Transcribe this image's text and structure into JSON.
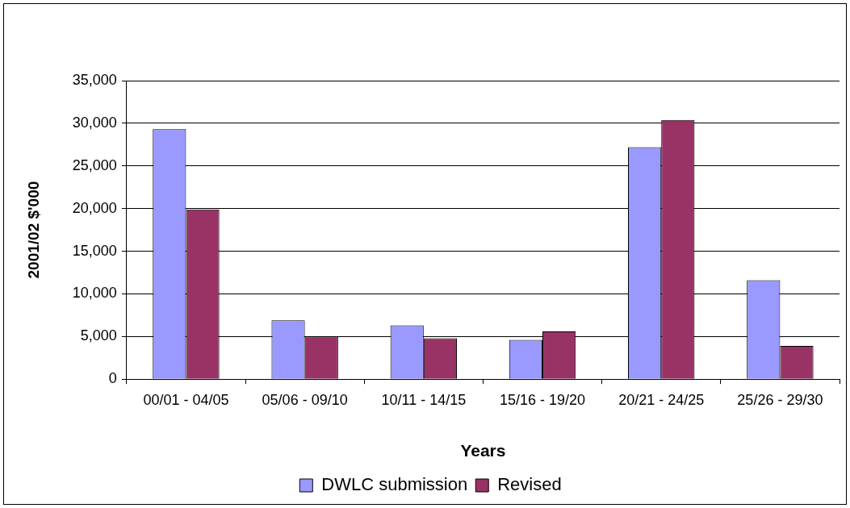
{
  "chart_data": {
    "type": "bar",
    "xlabel": "Years",
    "ylabel": "2001/02 $'000",
    "categories": [
      "00/01 - 04/05",
      "05/06 - 09/10",
      "10/11 - 14/15",
      "15/16 - 19/20",
      "20/21 - 24/25",
      "25/26 - 29/30"
    ],
    "series": [
      {
        "name": "DWLC submission",
        "color": "#9999ff",
        "values": [
          29300,
          6900,
          6300,
          4600,
          27200,
          11600
        ]
      },
      {
        "name": "Revised",
        "color": "#993366",
        "values": [
          19900,
          5000,
          4800,
          5600,
          30400,
          3900
        ]
      }
    ],
    "ylim": [
      0,
      35000
    ],
    "yticks": [
      0,
      {
        "value": 5000,
        "label": "5,000"
      },
      {
        "value": 10000,
        "label": "10,000"
      },
      {
        "value": 15000,
        "label": "15,000"
      },
      {
        "value": 20000,
        "label": "20,000"
      },
      {
        "value": 25000,
        "label": "25,000"
      },
      {
        "value": 30000,
        "label": "30,000"
      },
      {
        "value": 35000,
        "label": "35,000"
      }
    ],
    "grid": "y",
    "legend": "bottom"
  }
}
